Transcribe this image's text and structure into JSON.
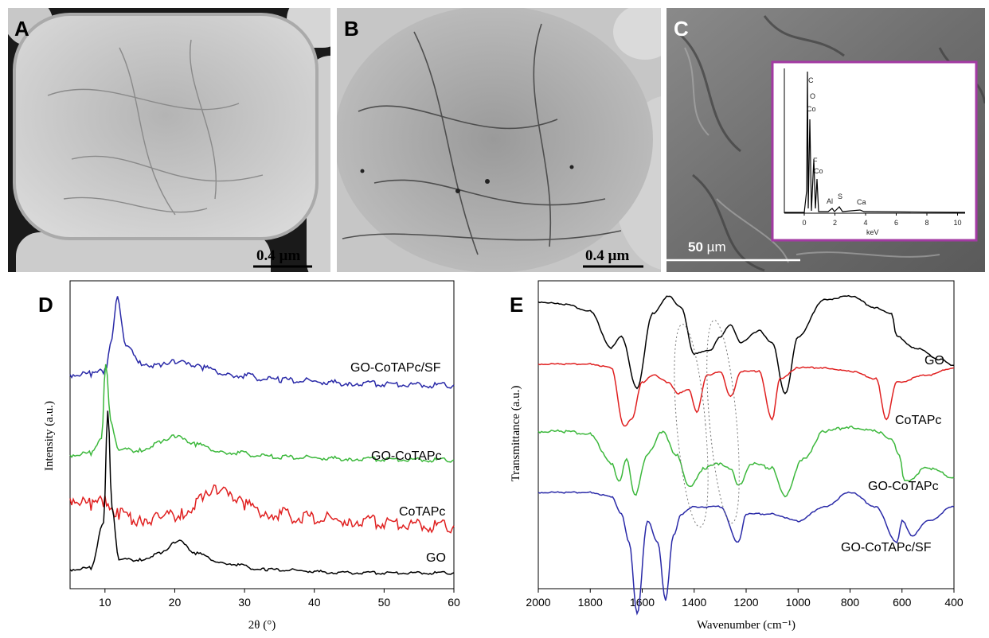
{
  "panels": {
    "a": {
      "label": "A",
      "scale_bar": "0.4 µm"
    },
    "b": {
      "label": "B",
      "scale_bar": "0.4 µm"
    },
    "c": {
      "label": "C",
      "scale_bar_value": "50",
      "scale_bar_unit": " µm",
      "inset_peaks": [
        "C",
        "O",
        "Co",
        "F",
        "Co",
        "Al",
        "S",
        "Ca"
      ],
      "inset_tick_labels": [
        "0",
        "2",
        "4",
        "6",
        "8",
        "10"
      ],
      "inset_xlabel": "keV"
    },
    "d": {
      "label": "D"
    },
    "e": {
      "label": "E"
    }
  },
  "colors": {
    "black": "#000000",
    "red": "#e02020",
    "green": "#3cb83c",
    "blue": "#2a2aa8"
  },
  "chart_data": [
    {
      "type": "line",
      "panel": "D",
      "xlabel": "2θ (°)",
      "ylabel": "Intensity (a.u.)",
      "xlim": [
        5,
        60
      ],
      "xticks": [
        10,
        20,
        30,
        40,
        50,
        60
      ],
      "series": [
        {
          "name": "GO-CoTAPc/SF",
          "color": "#2a2aa8",
          "x": [
            5,
            8,
            10,
            11,
            11.8,
            13,
            15,
            18,
            21,
            24,
            28,
            35,
            45,
            60
          ],
          "y": [
            0.12,
            0.13,
            0.16,
            0.55,
            1.0,
            0.45,
            0.25,
            0.22,
            0.28,
            0.2,
            0.12,
            0.06,
            0.02,
            0.0
          ]
        },
        {
          "name": "GO-CoTAPc",
          "color": "#3cb83c",
          "x": [
            5,
            8,
            9.5,
            10.1,
            10.8,
            12,
            15,
            18,
            20.5,
            23,
            27,
            35,
            45,
            60
          ],
          "y": [
            0.05,
            0.07,
            0.2,
            1.0,
            0.4,
            0.1,
            0.1,
            0.18,
            0.25,
            0.16,
            0.08,
            0.03,
            0.01,
            0.0
          ]
        },
        {
          "name": "CoTAPc",
          "color": "#e02020",
          "x": [
            5,
            8,
            10,
            12,
            15,
            18,
            21,
            24,
            27,
            30,
            33,
            38,
            45,
            60
          ],
          "y": [
            0.55,
            0.45,
            0.5,
            0.25,
            0.18,
            0.2,
            0.28,
            0.55,
            0.75,
            0.45,
            0.3,
            0.22,
            0.15,
            0.06
          ]
        },
        {
          "name": "GO",
          "color": "#000000",
          "x": [
            5,
            8,
            9.8,
            10.4,
            11,
            12,
            15,
            18,
            20.7,
            23,
            27,
            33,
            45,
            60
          ],
          "y": [
            0.02,
            0.03,
            0.3,
            1.0,
            0.4,
            0.08,
            0.08,
            0.12,
            0.2,
            0.12,
            0.06,
            0.02,
            0.0,
            0.0
          ]
        }
      ]
    },
    {
      "type": "line",
      "panel": "E",
      "xlabel": "Wavenumber (cm⁻¹)",
      "ylabel": "Transmittance (a.u.)",
      "xlim": [
        2000,
        400
      ],
      "xticks": [
        2000,
        1800,
        1600,
        1400,
        1200,
        1000,
        800,
        600,
        400
      ],
      "series": [
        {
          "name": "GO",
          "color": "#000000",
          "x": [
            2000,
            1900,
            1800,
            1720,
            1680,
            1620,
            1560,
            1500,
            1450,
            1400,
            1340,
            1300,
            1260,
            1220,
            1150,
            1100,
            1050,
            1000,
            900,
            800,
            700,
            640,
            620,
            550,
            450,
            400
          ],
          "y": [
            0.9,
            0.88,
            0.82,
            0.5,
            0.6,
            0.15,
            0.8,
            0.95,
            0.85,
            0.45,
            0.48,
            0.6,
            0.7,
            0.55,
            0.65,
            0.55,
            0.1,
            0.6,
            0.92,
            0.95,
            0.85,
            0.8,
            0.6,
            0.5,
            0.4,
            0.35
          ]
        },
        {
          "name": "CoTAPc",
          "color": "#e02020",
          "x": [
            2000,
            1900,
            1800,
            1720,
            1670,
            1640,
            1600,
            1560,
            1500,
            1460,
            1420,
            1390,
            1350,
            1300,
            1260,
            1220,
            1150,
            1100,
            1070,
            1000,
            900,
            800,
            700,
            660,
            620,
            500,
            400
          ],
          "y": [
            0.95,
            0.95,
            0.95,
            0.9,
            0.1,
            0.2,
            0.7,
            0.8,
            0.7,
            0.55,
            0.6,
            0.3,
            0.8,
            0.85,
            0.5,
            0.85,
            0.85,
            0.2,
            0.75,
            0.9,
            0.9,
            0.85,
            0.75,
            0.2,
            0.7,
            0.8,
            0.9
          ]
        },
        {
          "name": "GO-CoTAPc",
          "color": "#3cb83c",
          "x": [
            2000,
            1900,
            1800,
            1720,
            1690,
            1660,
            1630,
            1580,
            1520,
            1470,
            1420,
            1360,
            1300,
            1260,
            1230,
            1180,
            1100,
            1050,
            980,
            900,
            800,
            700,
            640,
            610,
            590,
            500,
            400
          ],
          "y": [
            0.85,
            0.85,
            0.82,
            0.5,
            0.3,
            0.55,
            0.15,
            0.6,
            0.85,
            0.6,
            0.25,
            0.45,
            0.5,
            0.45,
            0.25,
            0.5,
            0.45,
            0.15,
            0.55,
            0.85,
            0.9,
            0.85,
            0.75,
            0.6,
            0.3,
            0.45,
            0.35
          ]
        },
        {
          "name": "GO-CoTAPc/SF",
          "color": "#2a2aa8",
          "x": [
            2000,
            1900,
            1800,
            1720,
            1680,
            1650,
            1620,
            1580,
            1540,
            1510,
            1480,
            1450,
            1400,
            1300,
            1230,
            1200,
            1100,
            1000,
            900,
            800,
            700,
            620,
            600,
            560,
            500,
            400
          ],
          "y": [
            0.95,
            0.95,
            0.95,
            0.92,
            0.8,
            0.6,
            0.1,
            0.75,
            0.6,
            0.2,
            0.65,
            0.8,
            0.85,
            0.85,
            0.6,
            0.8,
            0.8,
            0.75,
            0.85,
            0.95,
            0.85,
            0.6,
            0.75,
            0.65,
            0.75,
            0.85
          ]
        }
      ]
    }
  ]
}
